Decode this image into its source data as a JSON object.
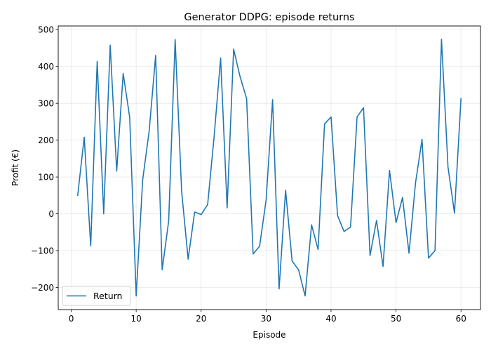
{
  "chart_data": {
    "type": "line",
    "title": "Generator DDPG: episode returns",
    "xlabel": "Episode",
    "ylabel": "Profit (€)",
    "xlim": [
      -2,
      63
    ],
    "ylim": [
      -260,
      510
    ],
    "xticks": [
      0,
      10,
      20,
      30,
      40,
      50,
      60
    ],
    "yticks": [
      -200,
      -100,
      0,
      100,
      200,
      300,
      400,
      500
    ],
    "grid": true,
    "legend_position": "lower-left",
    "series": [
      {
        "name": "Return",
        "color": "#1f77b4",
        "x": [
          1,
          2,
          3,
          4,
          5,
          6,
          7,
          8,
          9,
          10,
          11,
          12,
          13,
          14,
          15,
          16,
          17,
          18,
          19,
          20,
          21,
          22,
          23,
          24,
          25,
          26,
          27,
          28,
          29,
          30,
          31,
          32,
          33,
          34,
          35,
          36,
          37,
          38,
          39,
          40,
          41,
          42,
          43,
          44,
          45,
          46,
          47,
          48,
          49,
          50,
          51,
          52,
          53,
          54,
          55,
          56,
          57,
          58,
          59,
          60
        ],
        "y": [
          50,
          208,
          -87,
          414,
          0,
          458,
          116,
          381,
          262,
          -223,
          92,
          225,
          430,
          -152,
          -20,
          473,
          60,
          -123,
          5,
          -2,
          25,
          210,
          423,
          16,
          447,
          372,
          313,
          -109,
          -88,
          37,
          310,
          -204,
          64,
          -128,
          -152,
          -223,
          -30,
          -97,
          244,
          263,
          -5,
          -48,
          -36,
          263,
          288,
          -113,
          -18,
          -143,
          118,
          -24,
          44,
          -107,
          84,
          202,
          -120,
          -100,
          474,
          127,
          2,
          313
        ]
      }
    ]
  }
}
